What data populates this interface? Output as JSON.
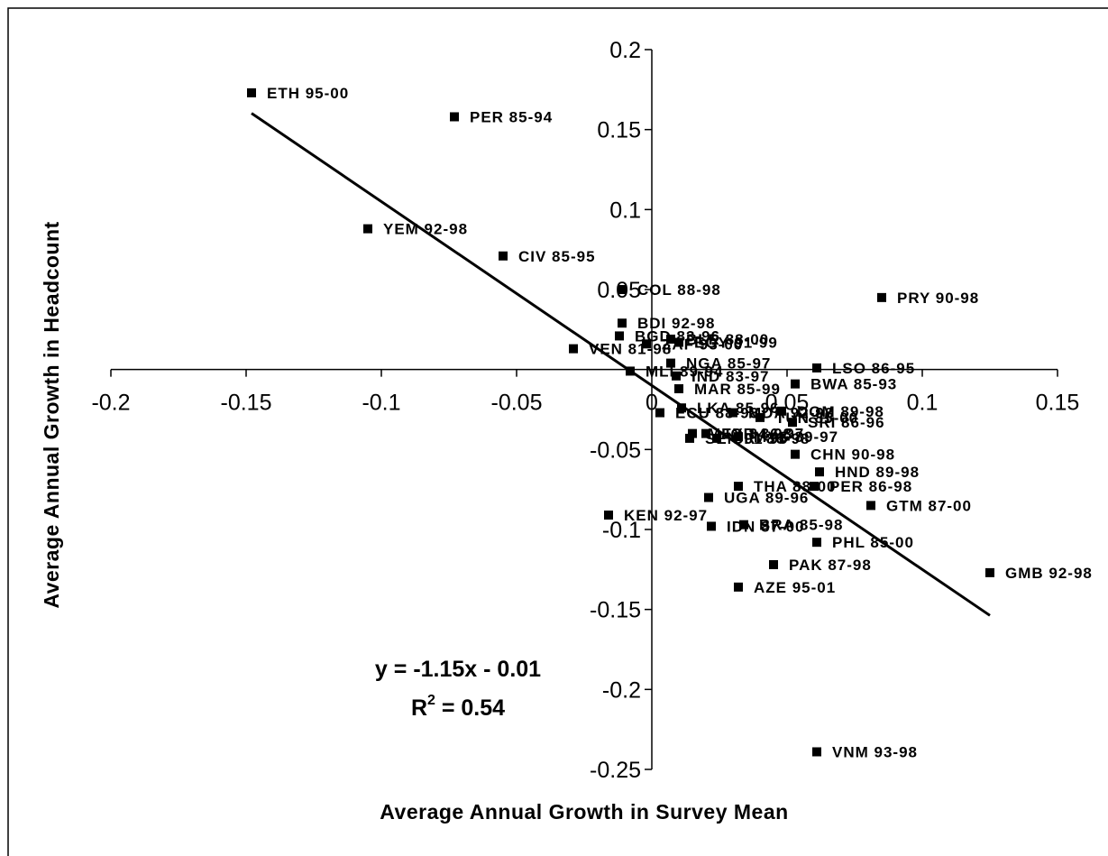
{
  "chart_data": {
    "type": "scatter",
    "xlabel": "Average Annual Growth in Survey Mean",
    "ylabel": "Average Annual Growth in Headcount",
    "xlim": [
      -0.2,
      0.15
    ],
    "ylim": [
      -0.25,
      0.2
    ],
    "x_ticks": [
      -0.2,
      -0.15,
      -0.1,
      -0.05,
      0,
      0.05,
      0.1,
      0.15
    ],
    "y_ticks": [
      -0.25,
      -0.2,
      -0.15,
      -0.1,
      -0.05,
      0.05,
      0.1,
      0.15,
      0.2
    ],
    "x_tick_labels": [
      "-0.2",
      "-0.15",
      "-0.1",
      "-0.05",
      "0",
      "0.05",
      "0.1",
      "0.15"
    ],
    "y_tick_labels": [
      "-0.25",
      "-0.2",
      "-0.15",
      "-0.1",
      "-0.05",
      "0.05",
      "0.1",
      "0.15",
      "0.2"
    ],
    "grid": false,
    "points": [
      {
        "label": "ETH 95-00",
        "x": -0.148,
        "y": 0.173
      },
      {
        "label": "PER 85-94",
        "x": -0.073,
        "y": 0.158
      },
      {
        "label": "YEM 92-98",
        "x": -0.105,
        "y": 0.088
      },
      {
        "label": "CIV 85-95",
        "x": -0.055,
        "y": 0.071
      },
      {
        "label": "COL 88-98",
        "x": -0.011,
        "y": 0.05
      },
      {
        "label": "PRY 90-98",
        "x": 0.085,
        "y": 0.045
      },
      {
        "label": "BDI 92-98",
        "x": -0.011,
        "y": 0.029
      },
      {
        "label": "BGD 83-96",
        "x": -0.012,
        "y": 0.021
      },
      {
        "label": "VEN 81-98",
        "x": -0.029,
        "y": 0.013
      },
      {
        "label": "ZAF 93-00",
        "x": -0.002,
        "y": 0.016
      },
      {
        "label": "BLR 88-00",
        "x": 0.007,
        "y": 0.019
      },
      {
        "label": "EGY 91-99",
        "x": 0.01,
        "y": 0.017
      },
      {
        "label": "NGA 85-97",
        "x": 0.007,
        "y": 0.004
      },
      {
        "label": "LSO 86-95",
        "x": 0.061,
        "y": 0.001
      },
      {
        "label": "MLI 89-94",
        "x": -0.008,
        "y": -0.001
      },
      {
        "label": "IND 83-97",
        "x": 0.009,
        "y": -0.004
      },
      {
        "label": "BWA 85-93",
        "x": 0.053,
        "y": -0.009
      },
      {
        "label": "MAR 85-99",
        "x": 0.01,
        "y": -0.012
      },
      {
        "label": "LKA 85-96",
        "x": 0.011,
        "y": -0.024
      },
      {
        "label": "ECU 88-98",
        "x": 0.003,
        "y": -0.027
      },
      {
        "label": "MDA 92-98",
        "x": 0.03,
        "y": -0.027
      },
      {
        "label": "TUN 85-00",
        "x": 0.04,
        "y": -0.03
      },
      {
        "label": "DOM 89-98",
        "x": 0.048,
        "y": -0.026
      },
      {
        "label": "SRI 86-96",
        "x": 0.052,
        "y": -0.033
      },
      {
        "label": "MEX 84-98",
        "x": 0.015,
        "y": -0.04
      },
      {
        "label": "JOR 86-97",
        "x": 0.02,
        "y": -0.04
      },
      {
        "label": "SEN 91-95",
        "x": 0.014,
        "y": -0.043
      },
      {
        "label": "CRI 86-98",
        "x": 0.024,
        "y": -0.043
      },
      {
        "label": "MYS 89-97",
        "x": 0.032,
        "y": -0.042
      },
      {
        "label": "CHN 90-98",
        "x": 0.053,
        "y": -0.053
      },
      {
        "label": "HND 89-98",
        "x": 0.062,
        "y": -0.064
      },
      {
        "label": "THA 88-00",
        "x": 0.032,
        "y": -0.073
      },
      {
        "label": "PER 86-98",
        "x": 0.06,
        "y": -0.073
      },
      {
        "label": "UGA 89-96",
        "x": 0.021,
        "y": -0.08
      },
      {
        "label": "GTM 87-00",
        "x": 0.081,
        "y": -0.085
      },
      {
        "label": "KEN 92-97",
        "x": -0.016,
        "y": -0.091
      },
      {
        "label": "IDN 87-00",
        "x": 0.022,
        "y": -0.098
      },
      {
        "label": "BRA 85-98",
        "x": 0.034,
        "y": -0.097
      },
      {
        "label": "PHL 85-00",
        "x": 0.061,
        "y": -0.108
      },
      {
        "label": "PAK 87-98",
        "x": 0.045,
        "y": -0.122
      },
      {
        "label": "GMB 92-98",
        "x": 0.125,
        "y": -0.127
      },
      {
        "label": "AZE 95-01",
        "x": 0.032,
        "y": -0.136
      },
      {
        "label": "VNM 93-98",
        "x": 0.061,
        "y": -0.239
      }
    ],
    "trendline": {
      "slope": -1.15,
      "intercept": -0.01,
      "x_range": [
        -0.148,
        0.125
      ]
    },
    "annotations": {
      "equation": "y = -1.15x - 0.01",
      "r2_prefix": "R",
      "r2_sup": "2",
      "r2_suffix": " = 0.54"
    }
  }
}
